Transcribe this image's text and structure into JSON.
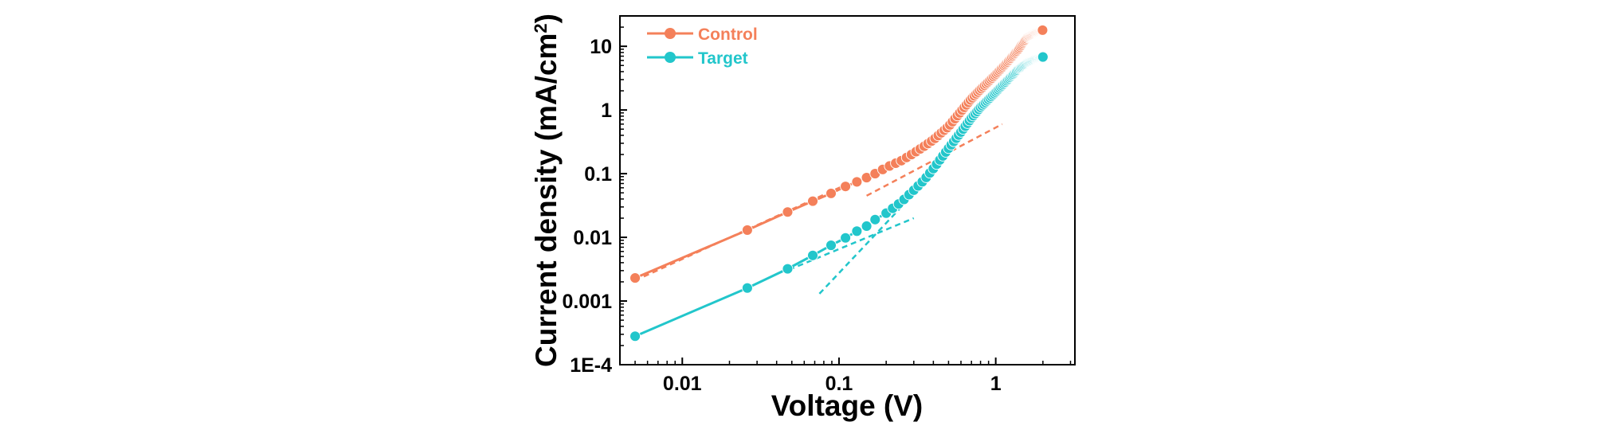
{
  "chart_data": {
    "type": "scatter",
    "xscale": "log",
    "yscale": "log",
    "xlim": [
      0.004,
      3.2
    ],
    "ylim": [
      0.0001,
      30
    ],
    "xlabel": "Voltage (V)",
    "ylabel_main": "Current density (mA/cm",
    "ylabel_sup": "2",
    "ylabel_close": ")",
    "x_ticks": [
      {
        "value": 0.01,
        "label": "0.01"
      },
      {
        "value": 0.1,
        "label": "0.1"
      },
      {
        "value": 1,
        "label": "1"
      }
    ],
    "y_ticks": [
      {
        "value": 0.0001,
        "label": "1E-4"
      },
      {
        "value": 0.001,
        "label": "0.001"
      },
      {
        "value": 0.01,
        "label": "0.01"
      },
      {
        "value": 0.1,
        "label": "0.1"
      },
      {
        "value": 1,
        "label": "1"
      },
      {
        "value": 10,
        "label": "10"
      }
    ],
    "series": [
      {
        "name": "Control",
        "color": "#F4805A",
        "dense_x_range": [
          0.13,
          2.0
        ],
        "points": [
          [
            0.005,
            0.0023
          ],
          [
            0.026,
            0.013
          ],
          [
            0.047,
            0.025
          ],
          [
            0.068,
            0.037
          ],
          [
            0.089,
            0.049
          ],
          [
            0.11,
            0.063
          ],
          [
            0.14,
            0.08
          ],
          [
            0.17,
            0.1
          ],
          [
            0.2,
            0.125
          ],
          [
            0.25,
            0.16
          ],
          [
            0.3,
            0.21
          ],
          [
            0.35,
            0.27
          ],
          [
            0.4,
            0.34
          ],
          [
            0.5,
            0.55
          ],
          [
            0.6,
            0.95
          ],
          [
            0.7,
            1.5
          ],
          [
            0.8,
            2.1
          ],
          [
            1.0,
            3.6
          ],
          [
            1.2,
            5.8
          ],
          [
            1.4,
            9.0
          ],
          [
            1.5,
            11.5
          ],
          [
            1.6,
            14.0
          ],
          [
            1.8,
            16.5
          ],
          [
            2.0,
            18.0
          ]
        ],
        "fits": [
          [
            [
              0.005,
              0.0021
            ],
            [
              0.2,
              0.13
            ]
          ],
          [
            [
              0.15,
              0.045
            ],
            [
              1.1,
              0.6
            ]
          ]
        ]
      },
      {
        "name": "Target",
        "color": "#22C6CB",
        "dense_x_range": [
          0.2,
          2.0
        ],
        "points": [
          [
            0.005,
            0.00028
          ],
          [
            0.026,
            0.0016
          ],
          [
            0.047,
            0.0032
          ],
          [
            0.068,
            0.0052
          ],
          [
            0.089,
            0.0075
          ],
          [
            0.11,
            0.0098
          ],
          [
            0.13,
            0.0125
          ],
          [
            0.15,
            0.015
          ],
          [
            0.17,
            0.019
          ],
          [
            0.2,
            0.024
          ],
          [
            0.25,
            0.036
          ],
          [
            0.3,
            0.055
          ],
          [
            0.35,
            0.08
          ],
          [
            0.4,
            0.12
          ],
          [
            0.5,
            0.25
          ],
          [
            0.6,
            0.45
          ],
          [
            0.7,
            0.75
          ],
          [
            0.8,
            1.1
          ],
          [
            1.0,
            1.9
          ],
          [
            1.2,
            3.0
          ],
          [
            1.4,
            4.4
          ],
          [
            1.6,
            5.6
          ],
          [
            1.8,
            6.4
          ],
          [
            2.0,
            6.8
          ]
        ],
        "fits": [
          [
            [
              0.048,
              0.0031
            ],
            [
              0.3,
              0.02
            ]
          ],
          [
            [
              0.075,
              0.0013
            ],
            [
              0.25,
              0.03
            ]
          ]
        ]
      }
    ],
    "legend_position": "top-left"
  }
}
